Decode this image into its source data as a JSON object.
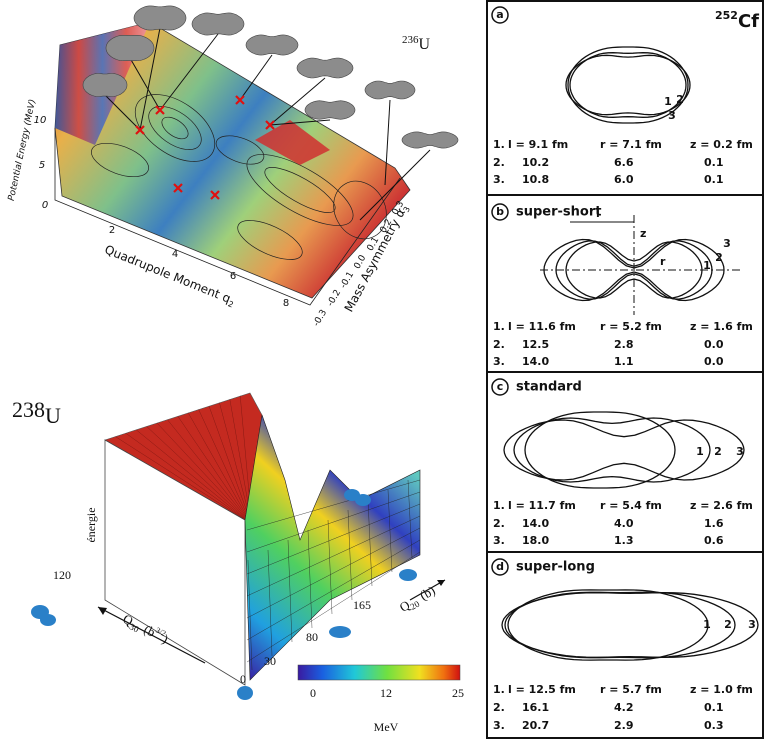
{
  "plot_236U": {
    "mass_number": "236",
    "element": "U",
    "energy_axis": {
      "label": "Potential Energy (MeV)",
      "ticks": [
        "0",
        "5",
        "10"
      ]
    },
    "quadrupole_axis": {
      "label": "Quadrupole Moment q",
      "subscript": "2",
      "ticks": [
        "2",
        "4",
        "6",
        "8"
      ]
    },
    "asymmetry_axis": {
      "label": "Mass Asymmetry α",
      "subscript": "3",
      "ticks": [
        "-0.3",
        "-0.2",
        "-0.1",
        "0.0",
        "0.1",
        "0.2",
        "0.3"
      ]
    }
  },
  "plot_238U": {
    "mass_number": "238",
    "element": "U",
    "energy_label": "énergie",
    "q30_tick": "120",
    "q30_label": {
      "symbol": "Q",
      "subscript": "30",
      "unit_open": "(b",
      "unit_power": "3/2",
      "unit_close": ")"
    },
    "q20_label": {
      "symbol": "Q",
      "subscript": "20",
      "unit": "(b)"
    },
    "q20_ticks": [
      "0",
      "30",
      "80",
      "165"
    ],
    "colorbar": {
      "ticks": [
        "0",
        "12",
        "25"
      ],
      "unit": "MeV"
    }
  },
  "shapes_252Cf": {
    "mass_number": "252",
    "element": "Cf",
    "panels": [
      {
        "letter": "a",
        "curve_labels": [
          "1",
          "2",
          "3"
        ],
        "rows": [
          [
            "1.",
            "l = 9.1 fm",
            "r = 7.1 fm",
            "z = 0.2 fm"
          ],
          [
            "2.",
            "10.2",
            "6.6",
            "0.1"
          ],
          [
            "3.",
            "10.8",
            "6.0",
            "0.1"
          ]
        ]
      },
      {
        "letter": "b",
        "title": "super-short",
        "curve_labels": [
          "1",
          "2",
          "3"
        ],
        "diagram_labels": [
          "l",
          "z",
          "r"
        ],
        "rows": [
          [
            "1.",
            "l = 11.6 fm",
            "r = 5.2 fm",
            "z = 1.6 fm"
          ],
          [
            "2.",
            "12.5",
            "2.8",
            "0.0"
          ],
          [
            "3.",
            "14.0",
            "1.1",
            "0.0"
          ]
        ]
      },
      {
        "letter": "c",
        "title": "standard",
        "curve_labels": [
          "1",
          "2",
          "3"
        ],
        "rows": [
          [
            "1.",
            "l = 11.7 fm",
            "r = 5.4 fm",
            "z = 2.6 fm"
          ],
          [
            "2.",
            "14.0",
            "4.0",
            "1.6"
          ],
          [
            "3.",
            "18.0",
            "1.3",
            "0.6"
          ]
        ]
      },
      {
        "letter": "d",
        "title": "super-long",
        "curve_labels": [
          "1",
          "2",
          "3"
        ],
        "rows": [
          [
            "1.",
            "l = 12.5 fm",
            "r = 5.7 fm",
            "z = 1.0 fm"
          ],
          [
            "2.",
            "16.1",
            "4.2",
            "0.1"
          ],
          [
            "3.",
            "20.7",
            "2.9",
            "0.3"
          ]
        ]
      }
    ]
  }
}
